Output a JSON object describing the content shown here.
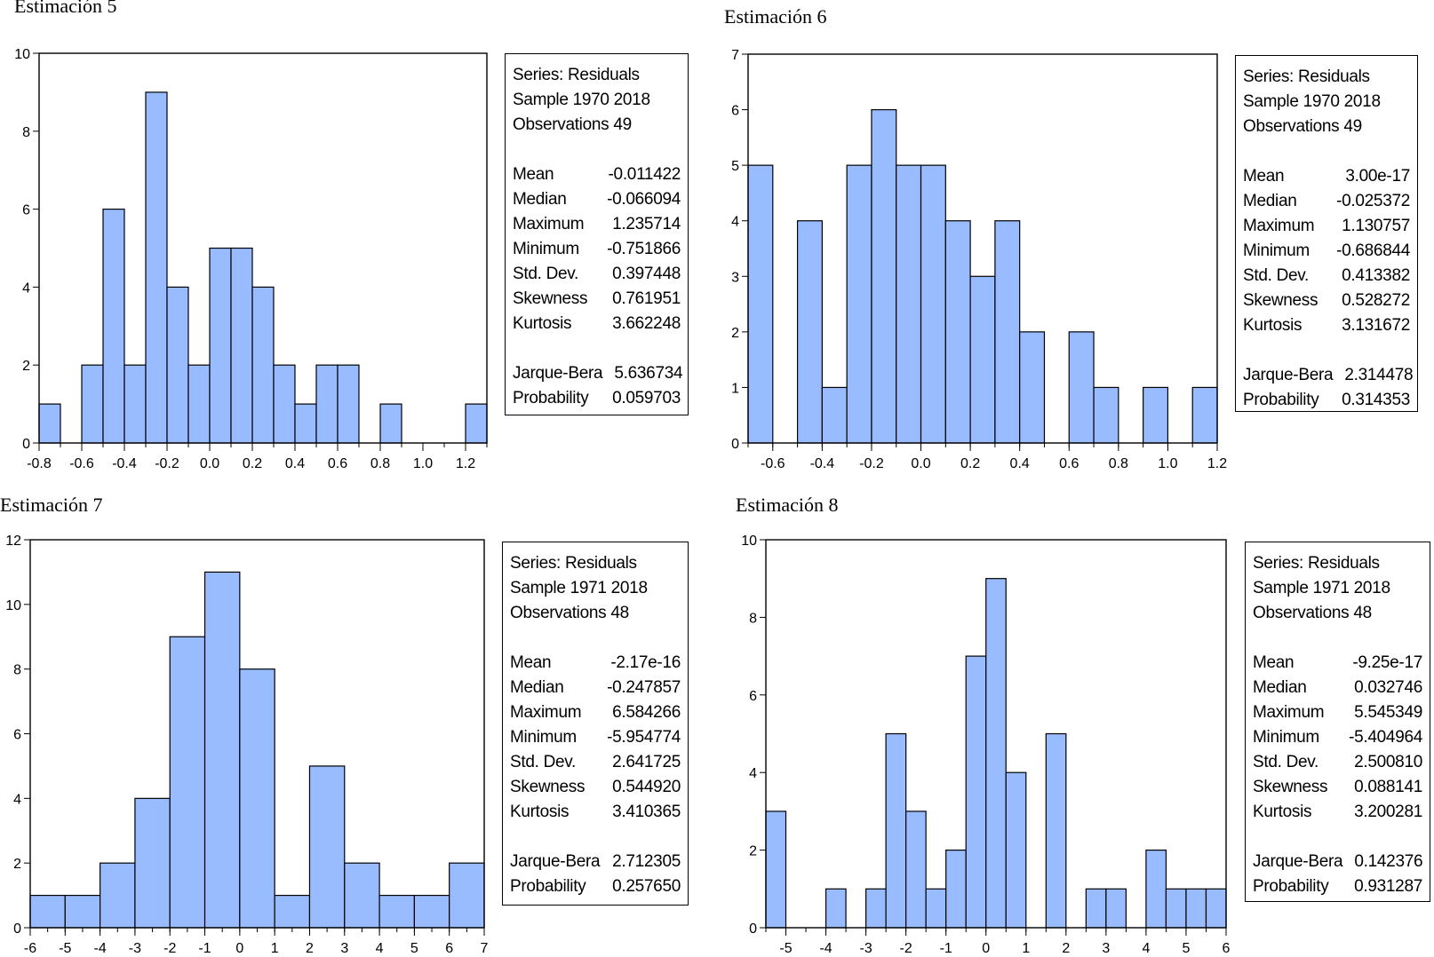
{
  "panels": [
    {
      "title": "Estimación 5",
      "stats": {
        "series": "Series: Residuals",
        "sample": "Sample 1970 2018",
        "observations": "Observations 49",
        "rows": [
          {
            "label": "Mean",
            "value": "-0.011422"
          },
          {
            "label": "Median",
            "value": "-0.066094"
          },
          {
            "label": "Maximum",
            "value": "1.235714"
          },
          {
            "label": "Minimum",
            "value": "-0.751866"
          },
          {
            "label": "Std. Dev.",
            "value": "0.397448"
          },
          {
            "label": "Skewness",
            "value": "0.761951"
          },
          {
            "label": "Kurtosis",
            "value": "3.662248"
          }
        ],
        "tests": [
          {
            "label": "Jarque-Bera",
            "value": "5.636734"
          },
          {
            "label": "Probability",
            "value": "0.059703"
          }
        ]
      }
    },
    {
      "title": "Estimación 6",
      "stats": {
        "series": "Series: Residuals",
        "sample": "Sample 1970 2018",
        "observations": "Observations 49",
        "rows": [
          {
            "label": "Mean",
            "value": "3.00e-17"
          },
          {
            "label": "Median",
            "value": "-0.025372"
          },
          {
            "label": "Maximum",
            "value": "1.130757"
          },
          {
            "label": "Minimum",
            "value": "-0.686844"
          },
          {
            "label": "Std. Dev.",
            "value": "0.413382"
          },
          {
            "label": "Skewness",
            "value": "0.528272"
          },
          {
            "label": "Kurtosis",
            "value": "3.131672"
          }
        ],
        "tests": [
          {
            "label": "Jarque-Bera",
            "value": "2.314478"
          },
          {
            "label": "Probability",
            "value": "0.314353"
          }
        ]
      }
    },
    {
      "title": "Estimación 7",
      "stats": {
        "series": "Series: Residuals",
        "sample": "Sample 1971 2018",
        "observations": "Observations 48",
        "rows": [
          {
            "label": "Mean",
            "value": "-2.17e-16"
          },
          {
            "label": "Median",
            "value": "-0.247857"
          },
          {
            "label": "Maximum",
            "value": "6.584266"
          },
          {
            "label": "Minimum",
            "value": "-5.954774"
          },
          {
            "label": "Std. Dev.",
            "value": "2.641725"
          },
          {
            "label": "Skewness",
            "value": "0.544920"
          },
          {
            "label": "Kurtosis",
            "value": "3.410365"
          }
        ],
        "tests": [
          {
            "label": "Jarque-Bera",
            "value": "2.712305"
          },
          {
            "label": "Probability",
            "value": "0.257650"
          }
        ]
      }
    },
    {
      "title": "Estimación 8",
      "stats": {
        "series": "Series: Residuals",
        "sample": "Sample 1971 2018",
        "observations": "Observations 48",
        "rows": [
          {
            "label": "Mean",
            "value": "-9.25e-17"
          },
          {
            "label": "Median",
            "value": "0.032746"
          },
          {
            "label": "Maximum",
            "value": "5.545349"
          },
          {
            "label": "Minimum",
            "value": "-5.404964"
          },
          {
            "label": "Std. Dev.",
            "value": "2.500810"
          },
          {
            "label": "Skewness",
            "value": "0.088141"
          },
          {
            "label": "Kurtosis",
            "value": "3.200281"
          }
        ],
        "tests": [
          {
            "label": "Jarque-Bera",
            "value": "0.142376"
          },
          {
            "label": "Probability",
            "value": "0.931287"
          }
        ]
      }
    }
  ],
  "colors": {
    "bar_fill": "#99BBFF",
    "bar_stroke": "#000000",
    "axis": "#000000"
  },
  "chart_data": [
    {
      "type": "bar",
      "title": "Estimación 5",
      "xlim": [
        -0.8,
        1.3
      ],
      "ylim": [
        0,
        10
      ],
      "bin_width": 0.1,
      "bin_starts": [
        -0.8,
        -0.6,
        -0.5,
        -0.4,
        -0.3,
        -0.2,
        -0.1,
        0.0,
        0.1,
        0.2,
        0.3,
        0.4,
        0.5,
        0.6,
        0.8,
        1.2
      ],
      "values": [
        1,
        2,
        6,
        2,
        9,
        4,
        2,
        5,
        5,
        4,
        2,
        1,
        2,
        2,
        1,
        1
      ],
      "x_ticks": [
        -0.8,
        -0.6,
        -0.4,
        -0.2,
        0.0,
        0.2,
        0.4,
        0.6,
        0.8,
        1.0,
        1.2
      ],
      "x_tick_labels": [
        "-0.8",
        "-0.6",
        "-0.4",
        "-0.2",
        "0.0",
        "0.2",
        "0.4",
        "0.6",
        "0.8",
        "1.0",
        "1.2"
      ],
      "x_minor_step": 0.1,
      "y_ticks": [
        0,
        2,
        4,
        6,
        8,
        10
      ],
      "y_tick_labels": [
        "0",
        "2",
        "4",
        "6",
        "8",
        "10"
      ]
    },
    {
      "type": "bar",
      "title": "Estimación 6",
      "xlim": [
        -0.7,
        1.2
      ],
      "ylim": [
        0,
        7
      ],
      "bin_width": 0.1,
      "bin_starts": [
        -0.7,
        -0.5,
        -0.4,
        -0.3,
        -0.2,
        -0.1,
        0.0,
        0.1,
        0.2,
        0.3,
        0.4,
        0.6,
        0.7,
        0.9,
        1.1
      ],
      "values": [
        5,
        4,
        1,
        5,
        6,
        5,
        5,
        4,
        3,
        4,
        2,
        2,
        1,
        1,
        1
      ],
      "x_ticks": [
        -0.6,
        -0.4,
        -0.2,
        0.0,
        0.2,
        0.4,
        0.6,
        0.8,
        1.0,
        1.2
      ],
      "x_tick_labels": [
        "-0.6",
        "-0.4",
        "-0.2",
        "0.0",
        "0.2",
        "0.4",
        "0.6",
        "0.8",
        "1.0",
        "1.2"
      ],
      "x_minor_step": 0.1,
      "y_ticks": [
        0,
        1,
        2,
        3,
        4,
        5,
        6,
        7
      ],
      "y_tick_labels": [
        "0",
        "1",
        "2",
        "3",
        "4",
        "5",
        "6",
        "7"
      ]
    },
    {
      "type": "bar",
      "title": "Estimación 7",
      "xlim": [
        -6,
        7
      ],
      "ylim": [
        0,
        12
      ],
      "bin_width": 1,
      "bin_starts": [
        -6,
        -5,
        -4,
        -3,
        -2,
        -1,
        0,
        1,
        2,
        3,
        4,
        5,
        6
      ],
      "values": [
        1,
        1,
        2,
        4,
        9,
        11,
        8,
        1,
        5,
        2,
        1,
        1,
        2
      ],
      "x_ticks": [
        -6,
        -5,
        -4,
        -3,
        -2,
        -1,
        0,
        1,
        2,
        3,
        4,
        5,
        6,
        7
      ],
      "x_tick_labels": [
        "-6",
        "-5",
        "-4",
        "-3",
        "-2",
        "-1",
        "0",
        "1",
        "2",
        "3",
        "4",
        "5",
        "6",
        "7"
      ],
      "x_minor_step": 0.5,
      "y_ticks": [
        0,
        2,
        4,
        6,
        8,
        10,
        12
      ],
      "y_tick_labels": [
        "0",
        "2",
        "4",
        "6",
        "8",
        "10",
        "12"
      ]
    },
    {
      "type": "bar",
      "title": "Estimación 8",
      "xlim": [
        -5.5,
        6.0
      ],
      "ylim": [
        0,
        10
      ],
      "bin_width": 0.5,
      "bin_starts": [
        -5.5,
        -4.0,
        -3.0,
        -2.5,
        -2.0,
        -1.5,
        -1.0,
        -0.5,
        0.0,
        0.5,
        1.5,
        2.5,
        3.0,
        4.0,
        4.5,
        5.0,
        5.5
      ],
      "values": [
        3,
        1,
        1,
        5,
        3,
        1,
        2,
        7,
        9,
        4,
        5,
        1,
        1,
        2,
        1,
        1,
        1
      ],
      "x_ticks": [
        -5,
        -4,
        -3,
        -2,
        -1,
        0,
        1,
        2,
        3,
        4,
        5,
        6
      ],
      "x_tick_labels": [
        "-5",
        "-4",
        "-3",
        "-2",
        "-1",
        "0",
        "1",
        "2",
        "3",
        "4",
        "5",
        "6"
      ],
      "x_minor_step": 0.5,
      "y_ticks": [
        0,
        2,
        4,
        6,
        8,
        10
      ],
      "y_tick_labels": [
        "0",
        "2",
        "4",
        "6",
        "8",
        "10"
      ]
    }
  ]
}
